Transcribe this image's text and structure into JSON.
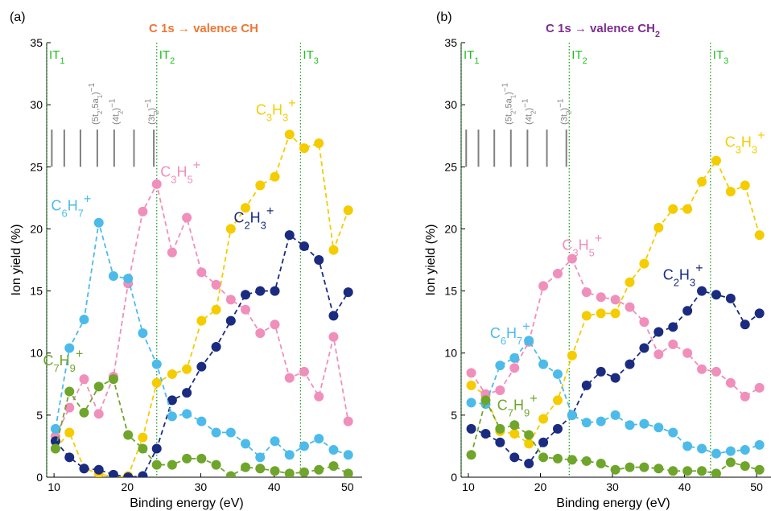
{
  "chart_data": [
    {
      "type": "scatter",
      "panel_label": "(a)",
      "title": "C 1s → valence CH",
      "title_color": "#ee7733",
      "xlabel": "Binding energy (eV)",
      "ylabel": "Ion yield (%)",
      "xlim": [
        9,
        52
      ],
      "ylim": [
        0,
        35
      ],
      "xticks": [
        10,
        20,
        30,
        40,
        50
      ],
      "yticks": [
        0,
        5,
        10,
        15,
        20,
        25,
        30,
        35
      ],
      "grid": false,
      "thresholds": [
        {
          "label_main": "IT",
          "label_sub": "1",
          "x": 9
        },
        {
          "label_main": "IT",
          "label_sub": "2",
          "x": 24
        },
        {
          "label_main": "IT",
          "label_sub": "3",
          "x": 43.6
        }
      ],
      "state_lines": {
        "x": [
          9.7,
          11.4,
          13.6,
          15.9,
          18.2,
          20.9,
          23.6
        ],
        "y_range": [
          25,
          28
        ]
      },
      "state_labels": [
        {
          "text": "(5t₂,5a₁)⁻¹",
          "x": 16.0
        },
        {
          "text": "(4t₂)⁻¹",
          "x": 18.8
        },
        {
          "text": "(3t₂)⁻¹",
          "x": 23.7
        }
      ],
      "series": [
        {
          "name": "C₃H₃⁺",
          "color": "#f5cc00",
          "label_at": [
            37.5,
            29.2
          ],
          "x": [
            10.2,
            12.1,
            14.1,
            16.1,
            18.1,
            20.1,
            22.1,
            24.0,
            26.1,
            28.1,
            30.1,
            32.1,
            34.1,
            36.1,
            38.1,
            40.1,
            42.1,
            44.1,
            46.1,
            48.1,
            50.1
          ],
          "y": [
            2.3,
            3.6,
            0.7,
            0.3,
            0.0,
            0.1,
            3.2,
            7.6,
            8.3,
            8.7,
            12.6,
            13.5,
            20.0,
            21.7,
            23.5,
            24.2,
            27.6,
            26.5,
            26.9,
            18.3,
            21.5
          ]
        },
        {
          "name": "C₃H₅⁺",
          "color": "#f08fbb",
          "label_at": [
            24.5,
            24.2
          ],
          "x": [
            10.2,
            12.1,
            14.1,
            16.1,
            18.1,
            20.1,
            22.1,
            24.0,
            26.1,
            28.1,
            30.1,
            32.1,
            34.1,
            36.1,
            38.1,
            40.1,
            42.1,
            44.1,
            46.1,
            48.1,
            50.1
          ],
          "y": [
            3.3,
            5.6,
            7.9,
            5.1,
            8.1,
            15.6,
            21.4,
            23.6,
            18.1,
            20.9,
            16.5,
            15.5,
            14.3,
            13.5,
            11.6,
            12.3,
            8.0,
            8.5,
            6.5,
            11.3,
            4.5
          ]
        },
        {
          "name": "C₂H₃⁺",
          "color": "#1a2b80",
          "label_at": [
            34.5,
            20.5
          ],
          "x": [
            10.2,
            12.1,
            14.1,
            16.1,
            18.1,
            20.1,
            22.1,
            24.0,
            26.1,
            28.1,
            30.1,
            32.1,
            34.1,
            36.1,
            38.1,
            40.1,
            42.1,
            44.1,
            46.1,
            48.1,
            50.1
          ],
          "y": [
            2.9,
            1.6,
            0.7,
            0.6,
            0.2,
            0.0,
            0.1,
            2.3,
            6.2,
            6.8,
            8.9,
            10.5,
            12.6,
            14.7,
            15.0,
            15.0,
            19.5,
            18.6,
            17.5,
            13.0,
            14.9
          ]
        },
        {
          "name": "C₆H₇⁺",
          "color": "#4dbbea",
          "label_at": [
            9.6,
            21.5
          ],
          "x": [
            10.2,
            12.1,
            14.1,
            16.1,
            18.1,
            20.1,
            22.1,
            24.0,
            26.1,
            28.1,
            30.1,
            32.1,
            34.1,
            36.1,
            38.1,
            40.1,
            42.1,
            44.1,
            46.1,
            48.1,
            50.1
          ],
          "y": [
            3.9,
            10.4,
            12.7,
            20.5,
            16.2,
            16.0,
            11.6,
            9.1,
            4.9,
            5.1,
            4.5,
            3.6,
            3.6,
            2.7,
            1.6,
            2.9,
            1.8,
            2.5,
            3.1,
            2.2,
            1.8
          ]
        },
        {
          "name": "C₇H₉⁺",
          "color": "#6fa52b",
          "label_at": [
            8.5,
            9.0
          ],
          "x": [
            10.2,
            12.1,
            14.1,
            16.1,
            18.1,
            20.1,
            22.1,
            24.0,
            26.1,
            28.1,
            30.1,
            32.1,
            34.1,
            36.1,
            38.1,
            40.1,
            42.1,
            44.1,
            46.1,
            48.1,
            50.1
          ],
          "y": [
            2.3,
            6.9,
            5.2,
            7.3,
            7.9,
            3.4,
            2.3,
            1.0,
            1.0,
            1.5,
            1.5,
            1.0,
            0.1,
            0.8,
            0.7,
            0.5,
            0.3,
            0.4,
            0.6,
            0.9,
            0.3
          ]
        }
      ]
    },
    {
      "type": "scatter",
      "panel_label": "(b)",
      "title": "C 1s → valence CH₂",
      "title_color": "#7b2e8e",
      "xlabel": "Binding energy (eV)",
      "ylabel": "Ion yield (%)",
      "xlim": [
        9,
        52
      ],
      "ylim": [
        0,
        35
      ],
      "xticks": [
        10,
        20,
        30,
        40,
        50
      ],
      "yticks": [
        0,
        5,
        10,
        15,
        20,
        25,
        30,
        35
      ],
      "grid": false,
      "thresholds": [
        {
          "label_main": "IT",
          "label_sub": "1",
          "x": 9
        },
        {
          "label_main": "IT",
          "label_sub": "2",
          "x": 24
        },
        {
          "label_main": "IT",
          "label_sub": "3",
          "x": 43.6
        }
      ],
      "state_lines": {
        "x": [
          9.7,
          11.4,
          13.6,
          15.9,
          18.2,
          20.9,
          23.6
        ],
        "y_range": [
          25,
          28
        ]
      },
      "state_labels": [
        {
          "text": "(5t₂,5a₁)⁻¹",
          "x": 16.0
        },
        {
          "text": "(4t₂)⁻¹",
          "x": 18.8
        },
        {
          "text": "(3t₂)⁻¹",
          "x": 23.7
        }
      ],
      "series": [
        {
          "name": "C₃H₃⁺",
          "color": "#f5cc00",
          "label_at": [
            45.6,
            26.6
          ],
          "x": [
            10.4,
            12.4,
            14.4,
            16.4,
            18.4,
            20.4,
            22.4,
            24.4,
            26.4,
            28.4,
            30.4,
            32.4,
            34.4,
            36.4,
            38.4,
            40.4,
            42.4,
            44.4,
            46.4,
            48.4,
            50.4
          ],
          "y": [
            7.4,
            6.6,
            3.7,
            3.5,
            2.7,
            4.7,
            6.2,
            9.8,
            13.0,
            13.2,
            13.2,
            15.7,
            17.2,
            20.1,
            21.6,
            21.6,
            23.8,
            25.5,
            23.0,
            23.5,
            19.5
          ]
        },
        {
          "name": "C₃H₅⁺",
          "color": "#f08fbb",
          "label_at": [
            23.0,
            18.3
          ],
          "x": [
            10.4,
            12.4,
            14.4,
            16.4,
            18.4,
            20.4,
            22.4,
            24.4,
            26.4,
            28.4,
            30.4,
            32.4,
            34.4,
            36.4,
            38.4,
            40.4,
            42.4,
            44.4,
            46.4,
            48.4,
            50.4
          ],
          "y": [
            8.4,
            6.7,
            7.0,
            8.8,
            10.9,
            15.4,
            16.4,
            17.6,
            14.9,
            14.5,
            14.3,
            13.7,
            12.5,
            9.9,
            10.7,
            10.0,
            8.7,
            8.5,
            7.6,
            6.5,
            7.2
          ]
        },
        {
          "name": "C₂H₃⁺",
          "color": "#1a2b80",
          "label_at": [
            37.0,
            15.9
          ],
          "x": [
            10.4,
            12.4,
            14.4,
            16.4,
            18.4,
            20.4,
            22.4,
            24.4,
            26.4,
            28.4,
            30.4,
            32.4,
            34.4,
            36.4,
            38.4,
            40.4,
            42.4,
            44.4,
            46.4,
            48.4,
            50.4
          ],
          "y": [
            3.9,
            3.5,
            2.8,
            1.6,
            1.1,
            2.8,
            3.9,
            5.0,
            7.4,
            8.5,
            8.0,
            9.1,
            10.4,
            11.7,
            12.1,
            13.4,
            15.0,
            14.7,
            14.4,
            12.3,
            13.2
          ]
        },
        {
          "name": "C₆H₇⁺",
          "color": "#4dbbea",
          "label_at": [
            13.0,
            11.2
          ],
          "x": [
            10.4,
            12.4,
            14.4,
            16.4,
            18.4,
            20.4,
            22.4,
            24.4,
            26.4,
            28.4,
            30.4,
            32.4,
            34.4,
            36.4,
            38.4,
            40.4,
            42.4,
            44.4,
            46.4,
            48.4,
            50.4
          ],
          "y": [
            6.0,
            5.9,
            9.0,
            9.6,
            11.0,
            9.1,
            8.3,
            5.0,
            4.4,
            4.5,
            5.0,
            4.2,
            4.3,
            4.0,
            3.6,
            2.5,
            2.3,
            1.9,
            2.1,
            2.2,
            2.6
          ]
        },
        {
          "name": "C₇H₉⁺",
          "color": "#6fa52b",
          "label_at": [
            14.0,
            5.4
          ],
          "x": [
            10.4,
            12.4,
            14.4,
            16.4,
            18.4,
            20.4,
            22.4,
            24.4,
            26.4,
            28.4,
            30.4,
            32.4,
            34.4,
            36.4,
            38.4,
            40.4,
            42.4,
            44.4,
            46.4,
            48.4,
            50.4
          ],
          "y": [
            1.8,
            6.2,
            3.9,
            4.2,
            3.4,
            1.6,
            1.5,
            1.4,
            1.3,
            1.1,
            0.6,
            0.8,
            0.8,
            0.7,
            0.5,
            0.5,
            0.5,
            0.3,
            1.2,
            0.9,
            0.6
          ]
        }
      ]
    }
  ]
}
